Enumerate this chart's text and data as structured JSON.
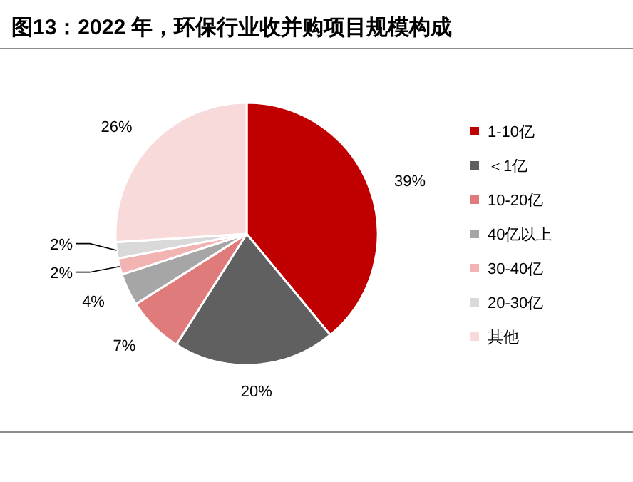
{
  "chart_data": {
    "type": "pie",
    "title": "图13：2022 年，环保行业收并购项目规模构成",
    "categories": [
      "1-10亿",
      "＜1亿",
      "10-20亿",
      "40亿以上",
      "30-40亿",
      "20-30亿",
      "其他"
    ],
    "values": [
      39,
      20,
      7,
      4,
      2,
      2,
      26
    ],
    "colors": [
      "#c00000",
      "#606060",
      "#e07b7b",
      "#a6a6a6",
      "#f2b3b3",
      "#d9d9d9",
      "#f8dada"
    ],
    "value_labels": [
      "39%",
      "20%",
      "7%",
      "4%",
      "2%",
      "2%",
      "26%"
    ],
    "legend": "right"
  }
}
